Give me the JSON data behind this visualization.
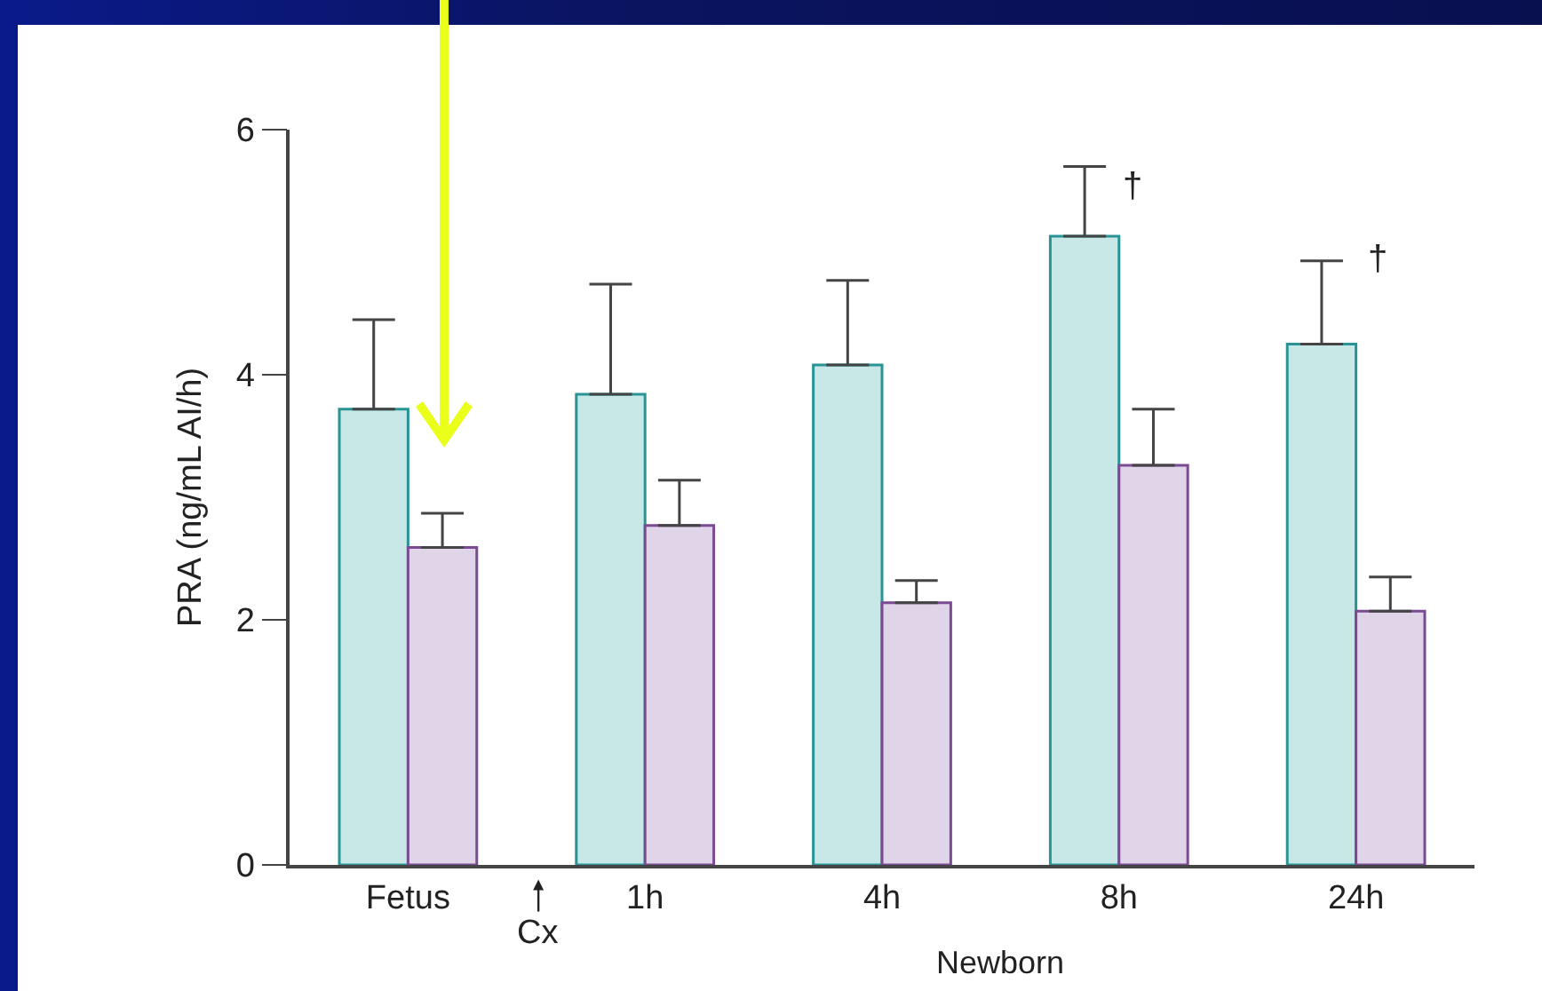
{
  "chart_data": {
    "type": "bar",
    "ylabel": "PRA (ng/mL AI/h)",
    "xlabel": "Newborn",
    "categories": [
      "Fetus",
      "1h",
      "4h",
      "8h",
      "24h"
    ],
    "series": [
      {
        "color": "#c8e8e8",
        "values": [
          3.72,
          3.84,
          4.08,
          5.13,
          4.25
        ],
        "errors": [
          [
            3.72,
            4.45
          ],
          [
            3.84,
            4.74
          ],
          [
            4.08,
            4.77
          ],
          [
            5.13,
            5.7
          ],
          [
            4.25,
            4.93
          ]
        ]
      },
      {
        "color": "#e0d4e8",
        "values": [
          2.59,
          2.77,
          2.14,
          3.26,
          2.07
        ],
        "errors": [
          [
            2.59,
            2.87
          ],
          [
            2.77,
            3.14
          ],
          [
            2.14,
            2.32
          ],
          [
            3.26,
            3.72
          ],
          [
            2.07,
            2.35
          ]
        ]
      }
    ],
    "ylim": [
      0,
      6
    ],
    "yticks": [
      0,
      2,
      4,
      6
    ],
    "grid": false,
    "annotations": [
      "Cx",
      "†",
      "†"
    ]
  }
}
